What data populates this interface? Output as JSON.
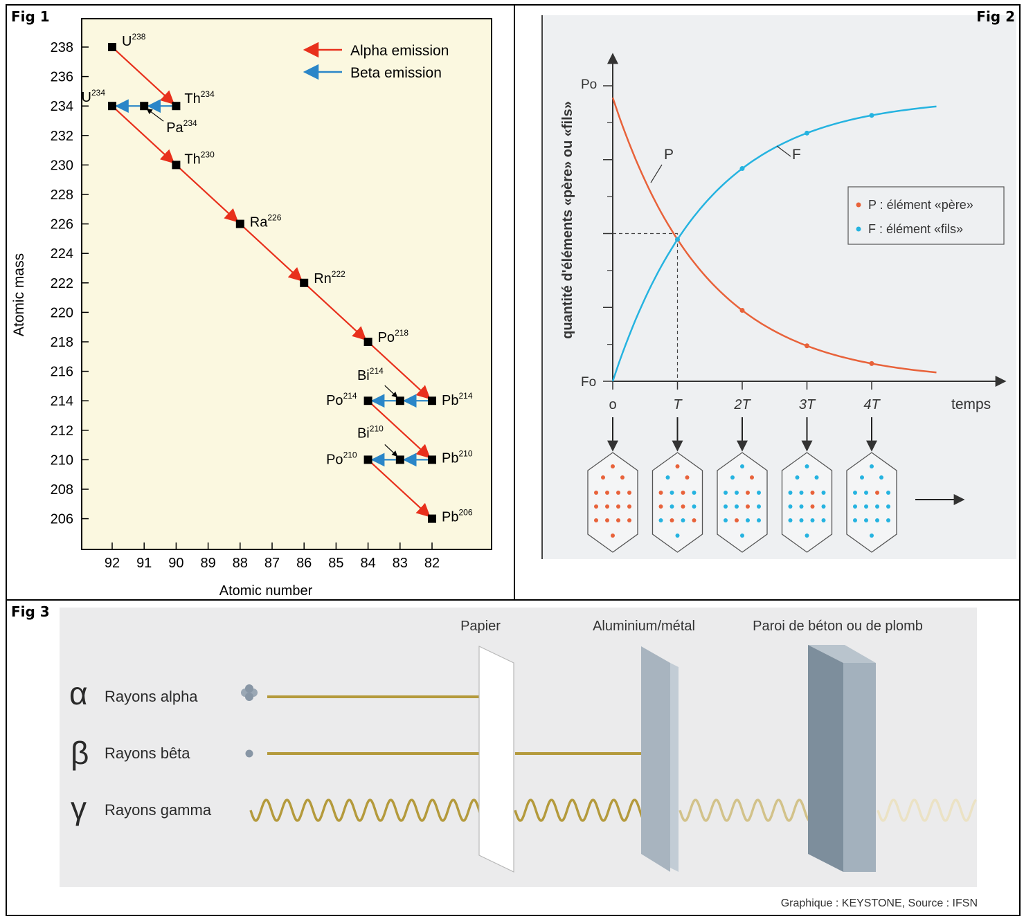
{
  "fig1": {
    "label": "Fig 1",
    "xlabel": "Atomic number",
    "ylabel": "Atomic mass",
    "legend": {
      "alpha": "Alpha emission",
      "beta": "Beta emission"
    },
    "colors": {
      "alpha": "#e8301c",
      "beta": "#2a86c8",
      "background": "#fbf8e0"
    },
    "chart_data": {
      "type": "scatter",
      "x_ticks": [
        92,
        91,
        90,
        89,
        88,
        87,
        86,
        85,
        84,
        83,
        82
      ],
      "y_ticks": [
        238,
        236,
        234,
        232,
        230,
        228,
        226,
        224,
        222,
        220,
        218,
        216,
        214,
        212,
        210,
        208,
        206
      ],
      "xlim": [
        93,
        81.8
      ],
      "ylim": [
        204.5,
        240
      ],
      "nuclides": [
        {
          "sym": "U",
          "mass": "238",
          "z": 92,
          "a": 238
        },
        {
          "sym": "Th",
          "mass": "234",
          "z": 90,
          "a": 234
        },
        {
          "sym": "Pa",
          "mass": "234",
          "z": 91,
          "a": 234
        },
        {
          "sym": "U",
          "mass": "234",
          "z": 92,
          "a": 234
        },
        {
          "sym": "Th",
          "mass": "230",
          "z": 90,
          "a": 230
        },
        {
          "sym": "Ra",
          "mass": "226",
          "z": 88,
          "a": 226
        },
        {
          "sym": "Rn",
          "mass": "222",
          "z": 86,
          "a": 222
        },
        {
          "sym": "Po",
          "mass": "218",
          "z": 84,
          "a": 218
        },
        {
          "sym": "Pb",
          "mass": "214",
          "z": 82,
          "a": 214
        },
        {
          "sym": "Bi",
          "mass": "214",
          "z": 83,
          "a": 214
        },
        {
          "sym": "Po",
          "mass": "214",
          "z": 84,
          "a": 214
        },
        {
          "sym": "Pb",
          "mass": "210",
          "z": 82,
          "a": 210
        },
        {
          "sym": "Bi",
          "mass": "210",
          "z": 83,
          "a": 210
        },
        {
          "sym": "Po",
          "mass": "210",
          "z": 84,
          "a": 210
        },
        {
          "sym": "Pb",
          "mass": "206",
          "z": 82,
          "a": 206
        }
      ],
      "alpha_decays": [
        [
          92,
          238,
          90,
          234
        ],
        [
          92,
          234,
          90,
          230
        ],
        [
          90,
          230,
          88,
          226
        ],
        [
          88,
          226,
          86,
          222
        ],
        [
          86,
          222,
          84,
          218
        ],
        [
          84,
          218,
          82,
          214
        ],
        [
          84,
          214,
          82,
          210
        ],
        [
          84,
          210,
          82,
          206
        ]
      ],
      "beta_decays": [
        [
          90,
          234,
          91,
          234
        ],
        [
          91,
          234,
          92,
          234
        ],
        [
          82,
          214,
          83,
          214
        ],
        [
          83,
          214,
          84,
          214
        ],
        [
          82,
          210,
          83,
          210
        ],
        [
          83,
          210,
          84,
          210
        ]
      ]
    }
  },
  "fig2": {
    "label": "Fig 2",
    "ylabel": "quantité d'éléments «père» ou «fils»",
    "y_top": "Po",
    "y_bottom": "Fo",
    "xlabel": "temps",
    "x_ticks": [
      "o",
      "T",
      "2T",
      "3T",
      "4T"
    ],
    "curve_p": "P",
    "curve_f": "F",
    "legend": {
      "p": "P : élément «père»",
      "f": "F : élément «fils»"
    },
    "colors": {
      "p": "#e8623a",
      "f": "#25b3e0",
      "background": "#eef0f2"
    },
    "chart_data": {
      "type": "line",
      "x": [
        0,
        1,
        2,
        3,
        4
      ],
      "series": [
        {
          "name": "P",
          "values": [
            1,
            0.5,
            0.25,
            0.125,
            0.0625
          ]
        },
        {
          "name": "F",
          "values": [
            0,
            0.5,
            0.75,
            0.875,
            0.9375
          ]
        }
      ]
    },
    "samples": [
      {
        "parent": 16,
        "daughter": 0
      },
      {
        "parent": 8,
        "daughter": 8
      },
      {
        "parent": 4,
        "daughter": 12
      },
      {
        "parent": 2,
        "daughter": 14
      },
      {
        "parent": 1,
        "daughter": 15
      }
    ]
  },
  "fig3": {
    "label": "Fig 3",
    "barriers": [
      "Papier",
      "Aluminium/métal",
      "Paroi de béton ou de plomb"
    ],
    "rays": [
      {
        "symbol": "α",
        "label": "Rayons alpha"
      },
      {
        "symbol": "β",
        "label": "Rayons bêta"
      },
      {
        "symbol": "γ",
        "label": "Rayons gamma"
      }
    ],
    "credit": "Graphique : KEYSTONE, Source : IFSN",
    "colors": {
      "ray": "#b49a3c",
      "background": "#ebebec",
      "metal": "#a8b4bf",
      "wall_front": "#7d8e9c",
      "wall_side": "#a3b1bd"
    }
  }
}
